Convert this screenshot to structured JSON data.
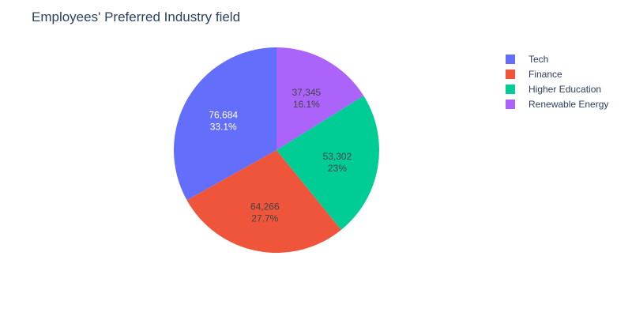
{
  "chart_data": {
    "type": "pie",
    "title": "Employees' Preferred Industry field",
    "slices": [
      {
        "label": "Tech",
        "value": 76684,
        "value_text": "76,684",
        "percent_text": "33.1%",
        "color": "#636efa",
        "text_color": "#ffffff"
      },
      {
        "label": "Finance",
        "value": 64266,
        "value_text": "64,266",
        "percent_text": "27.7%",
        "color": "#ef553b",
        "text_color": "#444444"
      },
      {
        "label": "Higher Education",
        "value": 53302,
        "value_text": "53,302",
        "percent_text": "23%",
        "color": "#00cc96",
        "text_color": "#444444"
      },
      {
        "label": "Renewable Energy",
        "value": 37345,
        "value_text": "37,345",
        "percent_text": "16.1%",
        "color": "#ab63fa",
        "text_color": "#444444"
      }
    ],
    "direction": "counterclockwise",
    "start_angle": "top",
    "legend_position": "top-right"
  }
}
